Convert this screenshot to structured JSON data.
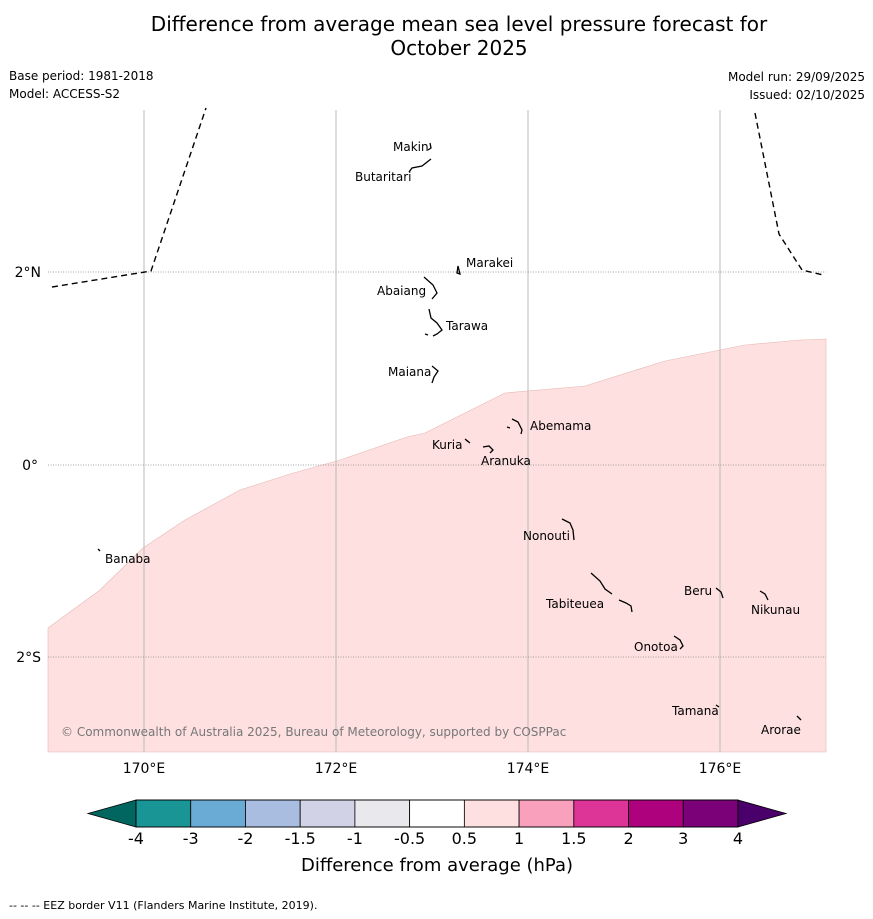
{
  "header": {
    "title_line1": "Difference from average mean sea level pressure forecast for",
    "title_line2": "October 2025",
    "base_period": "Base period: 1981-2018",
    "model": "Model: ACCESS-S2",
    "model_run": "Model run: 29/09/2025",
    "issued": "Issued: 02/10/2025"
  },
  "map": {
    "lat_labels": [
      "2°N",
      "0°",
      "2°S"
    ],
    "lon_labels": [
      "170°E",
      "172°E",
      "174°E",
      "176°E"
    ],
    "islands": [
      "Makin",
      "Butaritari",
      "Marakei",
      "Abaiang",
      "Tarawa",
      "Maiana",
      "Abemama",
      "Kuria",
      "Aranuka",
      "Nonouti",
      "Banaba",
      "Beru",
      "Nikunau",
      "Tabiteuea",
      "Onotoa",
      "Tamana",
      "Arorae"
    ],
    "copyright": "© Commonwealth of Australia 2025, Bureau of Meteorology, supported by COSPPac",
    "anomaly_fill_category": "0.5 to 1",
    "anomaly_fill_color": "#fde0df"
  },
  "colorbar": {
    "ticks": [
      "-4",
      "-3",
      "-2",
      "-1.5",
      "-1",
      "-0.5",
      "0.5",
      "1",
      "1.5",
      "2",
      "3",
      "4"
    ],
    "colors": [
      "#1a9595",
      "#6aabd5",
      "#a8bddf",
      "#d1d2e6",
      "#e9e8ec",
      "#ffffff",
      "#fde0df",
      "#f9a1bc",
      "#dd3497",
      "#ae017e",
      "#7a0177"
    ],
    "low_extend_color": "#00665f",
    "high_extend_color": "#49006a",
    "label": "Difference from average (hPa)"
  },
  "footer": {
    "eez_note": "--  --  -- EEZ border V11 (Flanders Marine Institute, 2019)."
  }
}
